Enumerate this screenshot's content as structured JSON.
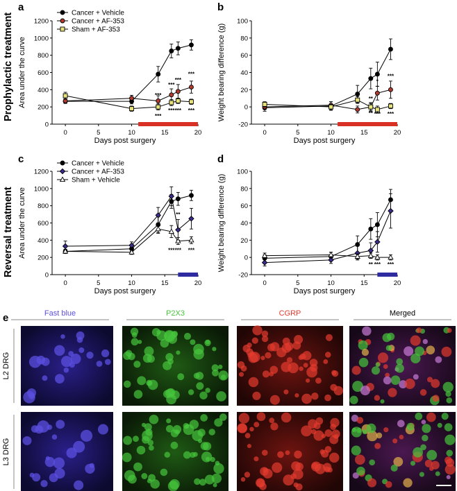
{
  "side_labels": [
    "Prophylactic treatment",
    "Reversal treatment"
  ],
  "panel_letters": [
    "a",
    "b",
    "c",
    "d",
    "e"
  ],
  "micrograph": {
    "columns": [
      "Fast blue",
      "P2X3",
      "CGRP",
      "Merged"
    ],
    "rows": [
      "L2 DRG",
      "L3 DRG"
    ],
    "colors": {
      "fast_blue": "#5b4fe0",
      "p2x3": "#46c43c",
      "cgrp": "#e43a2e",
      "merged_bg": "#3a1440"
    }
  },
  "chart_data": [
    {
      "type": "line",
      "panel": "a",
      "xlabel": "Days post surgery",
      "ylabel": "Area under the curve",
      "xlim": [
        -2,
        20
      ],
      "ylim": [
        0,
        1200
      ],
      "xticks": [
        0,
        5,
        10,
        15,
        20
      ],
      "yticks": [
        0,
        200,
        400,
        600,
        800,
        1000,
        1200
      ],
      "legend_position": "top-left",
      "treatment_bar": {
        "from": 11,
        "to": 20,
        "color": "#d93025"
      },
      "series": [
        {
          "name": "Cancer + Vehicle",
          "marker": "circle",
          "fill": "#000000",
          "x": [
            0,
            10,
            14,
            16,
            17,
            19
          ],
          "y": [
            265,
            265,
            580,
            850,
            880,
            920
          ],
          "err": [
            25,
            30,
            90,
            80,
            75,
            60
          ]
        },
        {
          "name": "Cancer + AF-353",
          "marker": "circle",
          "fill": "#b03a2e",
          "x": [
            0,
            10,
            14,
            16,
            17,
            19
          ],
          "y": [
            270,
            300,
            270,
            340,
            380,
            430
          ],
          "err": [
            25,
            35,
            60,
            70,
            80,
            70
          ]
        },
        {
          "name": "Sham + AF-353",
          "marker": "square",
          "fill": "#e8e27a",
          "x": [
            0,
            10,
            14,
            16,
            17,
            19
          ],
          "y": [
            330,
            180,
            200,
            250,
            270,
            260
          ],
          "err": [
            40,
            30,
            35,
            35,
            30,
            30
          ]
        }
      ],
      "annotations": [
        {
          "x": 14,
          "y": 340,
          "text": "***"
        },
        {
          "x": 14,
          "y": 95,
          "text": "***"
        },
        {
          "x": 16,
          "y": 460,
          "text": "***"
        },
        {
          "x": 16,
          "y": 160,
          "text": "***"
        },
        {
          "x": 17,
          "y": 515,
          "text": "***"
        },
        {
          "x": 17,
          "y": 160,
          "text": "***"
        },
        {
          "x": 19,
          "y": 585,
          "text": "***"
        },
        {
          "x": 19,
          "y": 160,
          "text": "***"
        }
      ]
    },
    {
      "type": "line",
      "panel": "b",
      "xlabel": "Days post surgery",
      "ylabel": "Weight bearing difference (g)",
      "xlim": [
        -2,
        20
      ],
      "ylim": [
        -20,
        100
      ],
      "xticks": [
        0,
        5,
        10,
        15,
        20
      ],
      "yticks": [
        -20,
        0,
        20,
        40,
        60,
        80,
        100
      ],
      "treatment_bar": {
        "from": 11,
        "to": 20,
        "color": "#d93025"
      },
      "series": [
        {
          "name": "Cancer + Vehicle",
          "marker": "circle",
          "fill": "#000000",
          "x": [
            0,
            10,
            14,
            16,
            17,
            19
          ],
          "y": [
            -1,
            1,
            15,
            33,
            38,
            67
          ],
          "err": [
            4,
            5,
            10,
            12,
            14,
            12
          ]
        },
        {
          "name": "Cancer + AF-353",
          "marker": "circle",
          "fill": "#b03a2e",
          "x": [
            0,
            10,
            14,
            16,
            17,
            19
          ],
          "y": [
            0,
            2,
            -3,
            0,
            16,
            20
          ],
          "err": [
            3,
            4,
            4,
            5,
            8,
            10
          ]
        },
        {
          "name": "Sham + AF-353",
          "marker": "square",
          "fill": "#e8e27a",
          "x": [
            0,
            10,
            14,
            16,
            17,
            19
          ],
          "y": [
            3,
            0,
            8,
            0,
            -3,
            1
          ],
          "err": [
            3,
            3,
            4,
            4,
            4,
            3
          ]
        }
      ],
      "annotations": [
        {
          "x": 16,
          "y": 10,
          "text": "**"
        },
        {
          "x": 16,
          "y": -7,
          "text": "**"
        },
        {
          "x": 17,
          "y": -8,
          "text": "***"
        },
        {
          "x": 17,
          "y": 30,
          "text": "*"
        },
        {
          "x": 19,
          "y": 36,
          "text": "***"
        },
        {
          "x": 19,
          "y": -8,
          "text": "***"
        }
      ]
    },
    {
      "type": "line",
      "panel": "c",
      "xlabel": "Days post surgery",
      "ylabel": "Area under the curve",
      "xlim": [
        -2,
        20
      ],
      "ylim": [
        0,
        1200
      ],
      "xticks": [
        0,
        5,
        10,
        15,
        20
      ],
      "yticks": [
        0,
        200,
        400,
        600,
        800,
        1000,
        1200
      ],
      "legend_position": "top-left",
      "treatment_bar": {
        "from": 17,
        "to": 20,
        "color": "#2e2aa0"
      },
      "series": [
        {
          "name": "Cancer + Vehicle",
          "marker": "circle",
          "fill": "#000000",
          "x": [
            0,
            10,
            14,
            16,
            17,
            19
          ],
          "y": [
            270,
            300,
            580,
            850,
            880,
            920
          ],
          "err": [
            25,
            30,
            90,
            80,
            75,
            60
          ]
        },
        {
          "name": "Cancer + AF-353",
          "marker": "diamond",
          "fill": "#3b2b8c",
          "x": [
            0,
            10,
            14,
            16,
            17,
            19
          ],
          "y": [
            330,
            340,
            690,
            910,
            520,
            650
          ],
          "err": [
            60,
            40,
            90,
            110,
            120,
            120
          ]
        },
        {
          "name": "Sham + Vehicle",
          "marker": "triangle",
          "fill": "#ffffff",
          "x": [
            0,
            10,
            14,
            16,
            17,
            19
          ],
          "y": [
            270,
            260,
            530,
            500,
            390,
            400
          ],
          "err": [
            25,
            25,
            50,
            70,
            40,
            40
          ]
        }
      ],
      "annotations": [
        {
          "x": 17,
          "y": 700,
          "text": "**"
        },
        {
          "x": 16,
          "y": 285,
          "text": "***"
        },
        {
          "x": 17,
          "y": 285,
          "text": "***"
        },
        {
          "x": 19,
          "y": 285,
          "text": "***"
        }
      ]
    },
    {
      "type": "line",
      "panel": "d",
      "xlabel": "Days post surgery",
      "ylabel": "Weight bearing difference (g)",
      "xlim": [
        -2,
        20
      ],
      "ylim": [
        -20,
        100
      ],
      "xticks": [
        0,
        5,
        10,
        15,
        20
      ],
      "yticks": [
        -20,
        0,
        20,
        40,
        60,
        80,
        100
      ],
      "treatment_bar": {
        "from": 17,
        "to": 20,
        "color": "#2e2aa0"
      },
      "series": [
        {
          "name": "Cancer + Vehicle",
          "marker": "circle",
          "fill": "#000000",
          "x": [
            0,
            10,
            14,
            16,
            17,
            19
          ],
          "y": [
            -1,
            1,
            15,
            33,
            38,
            67
          ],
          "err": [
            4,
            5,
            10,
            12,
            14,
            12
          ]
        },
        {
          "name": "Cancer + AF-353",
          "marker": "diamond",
          "fill": "#3b2b8c",
          "x": [
            0,
            10,
            14,
            16,
            17,
            19
          ],
          "y": [
            -6,
            -3,
            5,
            8,
            18,
            54
          ],
          "err": [
            4,
            4,
            8,
            9,
            12,
            20
          ]
        },
        {
          "name": "Sham + Vehicle",
          "marker": "triangle",
          "fill": "#ffffff",
          "x": [
            0,
            10,
            14,
            16,
            17,
            19
          ],
          "y": [
            2,
            3,
            1,
            2,
            0,
            0
          ],
          "err": [
            3,
            3,
            3,
            3,
            3,
            3
          ]
        }
      ],
      "annotations": [
        {
          "x": 16,
          "y": -8,
          "text": "**"
        },
        {
          "x": 17,
          "y": -8,
          "text": "***"
        },
        {
          "x": 19,
          "y": -8,
          "text": "***"
        }
      ]
    }
  ]
}
